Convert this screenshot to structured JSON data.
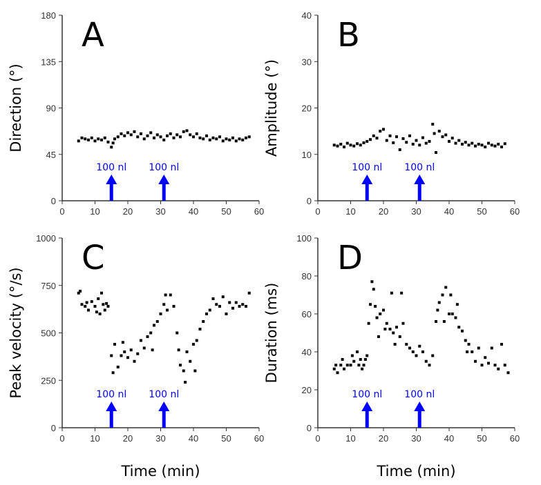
{
  "chart_data": [
    {
      "type": "scatter",
      "panel": "A",
      "ylabel": "Direction (°)",
      "xlabel": "",
      "xlim": [
        0,
        60
      ],
      "ylim": [
        0,
        180
      ],
      "xticks": [
        0,
        10,
        20,
        30,
        40,
        50,
        60
      ],
      "yticks": [
        0,
        45,
        90,
        135,
        180
      ],
      "annotations": [
        {
          "text": "100 nl",
          "x": 15
        },
        {
          "text": "100 nl",
          "x": 31
        }
      ],
      "points": [
        [
          5,
          58
        ],
        [
          6,
          61
        ],
        [
          7,
          60
        ],
        [
          8,
          59
        ],
        [
          9,
          61
        ],
        [
          10,
          58
        ],
        [
          11,
          60
        ],
        [
          12,
          59
        ],
        [
          13,
          61
        ],
        [
          14,
          57
        ],
        [
          15,
          52
        ],
        [
          15.5,
          56
        ],
        [
          16,
          60
        ],
        [
          17,
          62
        ],
        [
          18,
          65
        ],
        [
          19,
          63
        ],
        [
          20,
          66
        ],
        [
          21,
          64
        ],
        [
          22,
          67
        ],
        [
          23,
          62
        ],
        [
          24,
          65
        ],
        [
          25,
          60
        ],
        [
          26,
          63
        ],
        [
          27,
          66
        ],
        [
          28,
          61
        ],
        [
          29,
          64
        ],
        [
          30,
          62
        ],
        [
          31,
          59
        ],
        [
          32,
          63
        ],
        [
          33,
          65
        ],
        [
          34,
          61
        ],
        [
          35,
          64
        ],
        [
          36,
          62
        ],
        [
          37,
          67
        ],
        [
          38,
          68
        ],
        [
          39,
          64
        ],
        [
          40,
          62
        ],
        [
          41,
          65
        ],
        [
          42,
          61
        ],
        [
          43,
          60
        ],
        [
          44,
          63
        ],
        [
          45,
          59
        ],
        [
          46,
          61
        ],
        [
          47,
          60
        ],
        [
          48,
          62
        ],
        [
          49,
          58
        ],
        [
          50,
          60
        ],
        [
          51,
          59
        ],
        [
          52,
          61
        ],
        [
          53,
          58
        ],
        [
          54,
          60
        ],
        [
          55,
          59
        ],
        [
          56,
          61
        ],
        [
          57,
          62
        ]
      ]
    },
    {
      "type": "scatter",
      "panel": "B",
      "ylabel": "Amplitude (°)",
      "xlabel": "",
      "xlim": [
        0,
        60
      ],
      "ylim": [
        0,
        40
      ],
      "xticks": [
        0,
        10,
        20,
        30,
        40,
        50,
        60
      ],
      "yticks": [
        0,
        10,
        20,
        30,
        40
      ],
      "annotations": [
        {
          "text": "100 nl",
          "x": 15
        },
        {
          "text": "100 nl",
          "x": 31
        }
      ],
      "points": [
        [
          5,
          12
        ],
        [
          6,
          11.8
        ],
        [
          7,
          12.2
        ],
        [
          8,
          11.6
        ],
        [
          9,
          12.4
        ],
        [
          10,
          12
        ],
        [
          11,
          11.8
        ],
        [
          12,
          12.3
        ],
        [
          13,
          12
        ],
        [
          14,
          12.5
        ],
        [
          15,
          12.8
        ],
        [
          16,
          13.2
        ],
        [
          17,
          14
        ],
        [
          18,
          13.5
        ],
        [
          19,
          15
        ],
        [
          20,
          15.4
        ],
        [
          21,
          13
        ],
        [
          22,
          14
        ],
        [
          23,
          12.5
        ],
        [
          24,
          13.8
        ],
        [
          25,
          11
        ],
        [
          26,
          13.4
        ],
        [
          27,
          12.6
        ],
        [
          28,
          14
        ],
        [
          29,
          12.2
        ],
        [
          30,
          13
        ],
        [
          31,
          12
        ],
        [
          32,
          13.6
        ],
        [
          33,
          12.4
        ],
        [
          34,
          12.8
        ],
        [
          35,
          16.5
        ],
        [
          35.5,
          14.5
        ],
        [
          36,
          10.4
        ],
        [
          37,
          15
        ],
        [
          38,
          13.8
        ],
        [
          39,
          14.2
        ],
        [
          40,
          12.8
        ],
        [
          41,
          13.5
        ],
        [
          42,
          12.4
        ],
        [
          43,
          13
        ],
        [
          44,
          12.2
        ],
        [
          45,
          12.6
        ],
        [
          46,
          12
        ],
        [
          47,
          12.4
        ],
        [
          48,
          11.8
        ],
        [
          49,
          12.2
        ],
        [
          50,
          12
        ],
        [
          51,
          11.6
        ],
        [
          52,
          12.4
        ],
        [
          53,
          12
        ],
        [
          54,
          11.8
        ],
        [
          55,
          12.2
        ],
        [
          56,
          11.6
        ],
        [
          57,
          12.3
        ]
      ]
    },
    {
      "type": "scatter",
      "panel": "C",
      "ylabel": "Peak velocity (°/s)",
      "xlabel": "Time (min)",
      "xlim": [
        0,
        60
      ],
      "ylim": [
        0,
        1000
      ],
      "xticks": [
        0,
        10,
        20,
        30,
        40,
        50,
        60
      ],
      "yticks": [
        0,
        250,
        500,
        750,
        1000
      ],
      "annotations": [
        {
          "text": "100 nl",
          "x": 15
        },
        {
          "text": "100 nl",
          "x": 31
        }
      ],
      "points": [
        [
          5,
          710
        ],
        [
          5.5,
          720
        ],
        [
          6,
          650
        ],
        [
          7,
          640
        ],
        [
          7.5,
          660
        ],
        [
          8,
          620
        ],
        [
          9,
          665
        ],
        [
          10,
          640
        ],
        [
          10.5,
          610
        ],
        [
          11,
          680
        ],
        [
          11.5,
          600
        ],
        [
          12,
          710
        ],
        [
          12.5,
          650
        ],
        [
          13,
          620
        ],
        [
          13.5,
          655
        ],
        [
          14,
          640
        ],
        [
          15,
          380
        ],
        [
          15.5,
          290
        ],
        [
          16,
          440
        ],
        [
          17,
          320
        ],
        [
          18,
          380
        ],
        [
          18.5,
          450
        ],
        [
          19,
          400
        ],
        [
          20,
          370
        ],
        [
          21,
          410
        ],
        [
          22,
          350
        ],
        [
          23,
          390
        ],
        [
          24,
          460
        ],
        [
          25,
          420
        ],
        [
          26,
          480
        ],
        [
          27,
          500
        ],
        [
          27.5,
          410
        ],
        [
          28,
          540
        ],
        [
          29,
          560
        ],
        [
          30,
          600
        ],
        [
          31,
          650
        ],
        [
          31.5,
          700
        ],
        [
          32,
          620
        ],
        [
          33,
          700
        ],
        [
          34,
          640
        ],
        [
          35,
          500
        ],
        [
          35.5,
          410
        ],
        [
          36,
          330
        ],
        [
          37,
          300
        ],
        [
          37.5,
          240
        ],
        [
          38,
          400
        ],
        [
          39,
          350
        ],
        [
          40,
          440
        ],
        [
          40.5,
          300
        ],
        [
          41,
          460
        ],
        [
          42,
          520
        ],
        [
          43,
          560
        ],
        [
          44,
          600
        ],
        [
          45,
          620
        ],
        [
          46,
          680
        ],
        [
          47,
          650
        ],
        [
          48,
          640
        ],
        [
          49,
          690
        ],
        [
          50,
          600
        ],
        [
          51,
          660
        ],
        [
          52,
          630
        ],
        [
          53,
          660
        ],
        [
          54,
          640
        ],
        [
          55,
          650
        ],
        [
          56,
          640
        ],
        [
          57,
          710
        ]
      ]
    },
    {
      "type": "scatter",
      "panel": "D",
      "ylabel": "Duration (ms)",
      "xlabel": "Time (min)",
      "xlim": [
        0,
        60
      ],
      "ylim": [
        0,
        100
      ],
      "xticks": [
        0,
        10,
        20,
        30,
        40,
        50,
        60
      ],
      "yticks": [
        0,
        20,
        40,
        60,
        80,
        100
      ],
      "annotations": [
        {
          "text": "100 nl",
          "x": 15
        },
        {
          "text": "100 nl",
          "x": 31
        }
      ],
      "points": [
        [
          5,
          31
        ],
        [
          5.5,
          33
        ],
        [
          6,
          29
        ],
        [
          7,
          33
        ],
        [
          7.5,
          36
        ],
        [
          8,
          31
        ],
        [
          9,
          33
        ],
        [
          10,
          33
        ],
        [
          10.5,
          38
        ],
        [
          11,
          35
        ],
        [
          12,
          40
        ],
        [
          12.5,
          33
        ],
        [
          13,
          36
        ],
        [
          13.5,
          31
        ],
        [
          14,
          33
        ],
        [
          14.5,
          36
        ],
        [
          15,
          38
        ],
        [
          15.5,
          55
        ],
        [
          16,
          65
        ],
        [
          16.5,
          77
        ],
        [
          17,
          73
        ],
        [
          17.5,
          64
        ],
        [
          18,
          58
        ],
        [
          18.5,
          48
        ],
        [
          19,
          60
        ],
        [
          20,
          62
        ],
        [
          20.5,
          52
        ],
        [
          21,
          55
        ],
        [
          22,
          52
        ],
        [
          22.5,
          71
        ],
        [
          23,
          50
        ],
        [
          23.5,
          44
        ],
        [
          24,
          53
        ],
        [
          25,
          48
        ],
        [
          25.5,
          71
        ],
        [
          26,
          55
        ],
        [
          27,
          44
        ],
        [
          28,
          42
        ],
        [
          29,
          40
        ],
        [
          30,
          38
        ],
        [
          31,
          43
        ],
        [
          32,
          40
        ],
        [
          33,
          35
        ],
        [
          34,
          33
        ],
        [
          35,
          38
        ],
        [
          36,
          56
        ],
        [
          36.5,
          62
        ],
        [
          37,
          66
        ],
        [
          38,
          70
        ],
        [
          38.5,
          56
        ],
        [
          39,
          74
        ],
        [
          40,
          60
        ],
        [
          40.5,
          70
        ],
        [
          41,
          60
        ],
        [
          42,
          58
        ],
        [
          42.5,
          65
        ],
        [
          43,
          53
        ],
        [
          44,
          51
        ],
        [
          45,
          46
        ],
        [
          45.5,
          40
        ],
        [
          46,
          44
        ],
        [
          47,
          40
        ],
        [
          48,
          35
        ],
        [
          49,
          42
        ],
        [
          50,
          33
        ],
        [
          51,
          37
        ],
        [
          52,
          34
        ],
        [
          53,
          42
        ],
        [
          54,
          33
        ],
        [
          55,
          31
        ],
        [
          56,
          44
        ],
        [
          57,
          33
        ],
        [
          58,
          29
        ]
      ]
    }
  ]
}
